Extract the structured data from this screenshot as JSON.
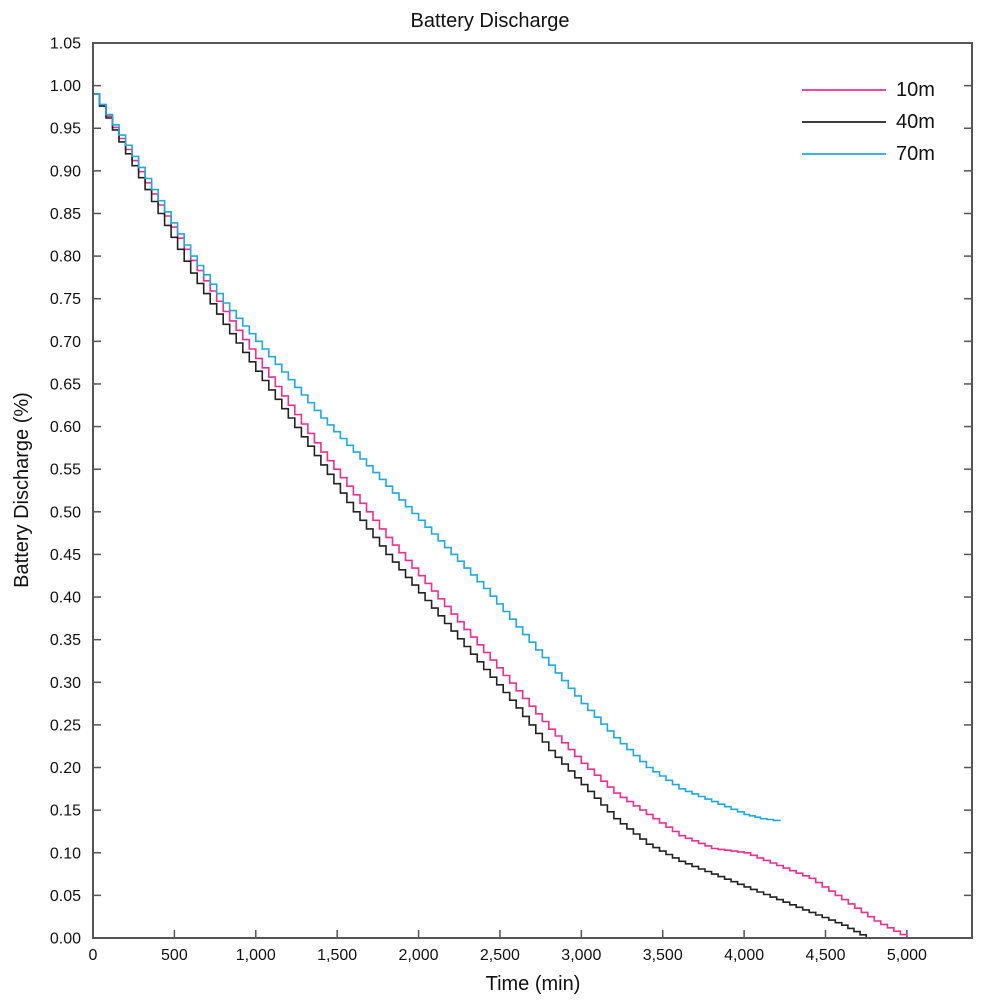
{
  "chart_data": {
    "type": "line",
    "title": "Battery Discharge",
    "xlabel": "Time (min)",
    "ylabel": "Battery Discharge (%)",
    "xlim": [
      0,
      5400
    ],
    "ylim": [
      0,
      1.05
    ],
    "xticks": [
      0,
      500,
      1000,
      1500,
      2000,
      2500,
      3000,
      3500,
      4000,
      4500,
      5000
    ],
    "xtick_labels": [
      "0",
      "500",
      "1,000",
      "1,500",
      "2,000",
      "2,500",
      "3,000",
      "3,500",
      "4,000",
      "4,500",
      "5,000"
    ],
    "yticks": [
      0,
      0.05,
      0.1,
      0.15,
      0.2,
      0.25,
      0.3,
      0.35,
      0.4,
      0.45,
      0.5,
      0.55,
      0.6,
      0.65,
      0.7,
      0.75,
      0.8,
      0.85,
      0.9,
      0.95,
      1.0,
      1.05
    ],
    "ytick_labels": [
      "0.00",
      "0.05",
      "0.10",
      "0.15",
      "0.20",
      "0.25",
      "0.30",
      "0.35",
      "0.40",
      "0.45",
      "0.50",
      "0.55",
      "0.60",
      "0.65",
      "0.70",
      "0.75",
      "0.80",
      "0.85",
      "0.90",
      "0.95",
      "1.00",
      "1.05"
    ],
    "grid": false,
    "legend_position": "top-right",
    "step": true,
    "series": [
      {
        "name": "10m",
        "color": "#ee2f8f",
        "x": [
          0,
          200,
          400,
          600,
          800,
          1000,
          1200,
          1400,
          1600,
          1800,
          2000,
          2200,
          2400,
          2600,
          2800,
          3000,
          3200,
          3400,
          3600,
          3800,
          4000,
          4200,
          4400,
          4600,
          4800,
          5000
        ],
        "y": [
          0.99,
          0.925,
          0.86,
          0.795,
          0.735,
          0.68,
          0.625,
          0.57,
          0.52,
          0.47,
          0.425,
          0.38,
          0.335,
          0.29,
          0.245,
          0.205,
          0.17,
          0.145,
          0.12,
          0.105,
          0.1,
          0.085,
          0.07,
          0.045,
          0.02,
          0.0
        ]
      },
      {
        "name": "40m",
        "color": "#222222",
        "x": [
          0,
          200,
          400,
          600,
          800,
          1000,
          1200,
          1400,
          1600,
          1800,
          2000,
          2200,
          2400,
          2600,
          2800,
          3000,
          3200,
          3400,
          3600,
          3800,
          4000,
          4200,
          4400,
          4600,
          4750
        ],
        "y": [
          0.99,
          0.92,
          0.85,
          0.78,
          0.72,
          0.665,
          0.61,
          0.555,
          0.5,
          0.45,
          0.405,
          0.36,
          0.315,
          0.27,
          0.22,
          0.18,
          0.14,
          0.11,
          0.09,
          0.075,
          0.06,
          0.045,
          0.03,
          0.015,
          0.0
        ]
      },
      {
        "name": "70m",
        "color": "#1fa9e1",
        "x": [
          0,
          200,
          400,
          600,
          800,
          1000,
          1200,
          1400,
          1600,
          1800,
          2000,
          2200,
          2400,
          2600,
          2800,
          3000,
          3200,
          3400,
          3600,
          3800,
          4000,
          4100,
          4220
        ],
        "y": [
          0.99,
          0.93,
          0.865,
          0.8,
          0.745,
          0.7,
          0.655,
          0.61,
          0.57,
          0.53,
          0.49,
          0.45,
          0.41,
          0.365,
          0.32,
          0.275,
          0.235,
          0.2,
          0.175,
          0.16,
          0.145,
          0.14,
          0.137
        ]
      }
    ]
  }
}
